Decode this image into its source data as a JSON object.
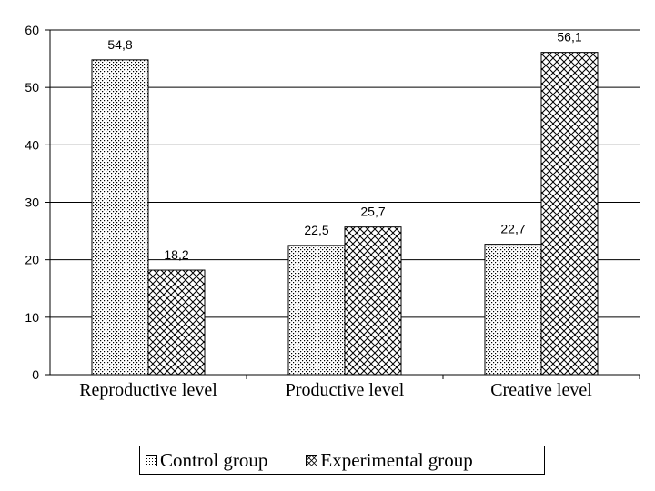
{
  "chart_data": {
    "type": "bar",
    "categories": [
      "Reproductive level",
      "Productive level",
      "Creative level"
    ],
    "series": [
      {
        "name": "Control group",
        "values": [
          54.8,
          22.5,
          22.7
        ],
        "labels": [
          "54,8",
          "22,5",
          "22,7"
        ]
      },
      {
        "name": "Experimental group",
        "values": [
          18.2,
          25.7,
          56.1
        ],
        "labels": [
          "18,2",
          "25,7",
          "56,1"
        ]
      }
    ],
    "ylim": [
      0,
      60
    ],
    "yticks": [
      "0",
      "10",
      "20",
      "30",
      "40",
      "50",
      "60"
    ],
    "title": "",
    "xlabel": "",
    "ylabel": "",
    "grid": true,
    "legend_position": "bottom",
    "colors": {
      "bar_fill": "#ffffff",
      "pattern_line": "#000000",
      "gridline": "#000000"
    }
  }
}
